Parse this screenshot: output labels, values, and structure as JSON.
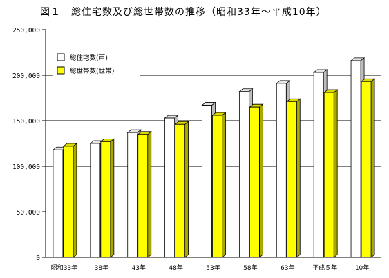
{
  "colors": {
    "series1_front": "#ffffff",
    "series1_top": "#e6e6e6",
    "series1_side": "#bdbdbd",
    "series2_front": "#ffff00",
    "series2_top": "#d9d900",
    "series2_side": "#a8a800",
    "axis": "#000000"
  },
  "chart_data": {
    "type": "bar",
    "title": "図１　総住宅数及び総世帯数の推移（昭和33年～平成10年）",
    "xlabel": "",
    "ylabel": "",
    "ylim": [
      0,
      250000
    ],
    "yticks": [
      0,
      50000,
      100000,
      150000,
      200000,
      250000
    ],
    "ytick_labels": [
      "0",
      "50,000",
      "100,000",
      "150,000",
      "200,000",
      "250,000"
    ],
    "gridlines": [
      100000,
      150000,
      200000
    ],
    "grid": true,
    "legend_position": "top-left",
    "categories": [
      "昭和33年",
      "38年",
      "43年",
      "48年",
      "53年",
      "58年",
      "63年",
      "平成５年",
      "10年"
    ],
    "series": [
      {
        "name": "総住宅数(戸)",
        "values": [
          118000,
          125000,
          137000,
          153000,
          167000,
          182000,
          191000,
          203000,
          216000
        ]
      },
      {
        "name": "総世帯数(世帯)",
        "values": [
          122000,
          127000,
          135000,
          146000,
          156000,
          165000,
          171000,
          181000,
          193000
        ]
      }
    ]
  }
}
